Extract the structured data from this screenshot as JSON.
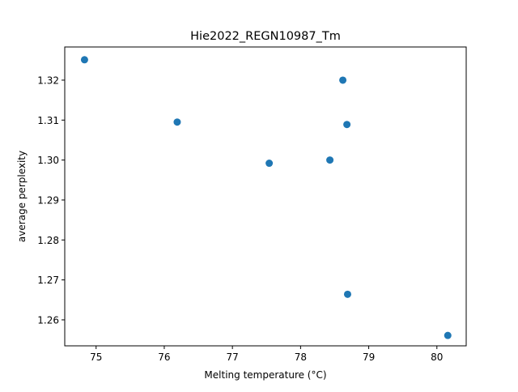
{
  "chart_data": {
    "type": "scatter",
    "title": "Hie2022_REGN10987_Tm",
    "xlabel": "Melting temperature (°C)",
    "ylabel": "average perplexity",
    "xlim": [
      74.54,
      80.43
    ],
    "ylim": [
      1.2535,
      1.3283
    ],
    "xticks": [
      75,
      76,
      77,
      78,
      79,
      80
    ],
    "yticks": [
      1.26,
      1.27,
      1.28,
      1.29,
      1.3,
      1.31,
      1.32
    ],
    "ytick_labels": [
      "1.26",
      "1.27",
      "1.28",
      "1.29",
      "1.30",
      "1.31",
      "1.32"
    ],
    "grid": false,
    "series": [
      {
        "color": "#1f77b4",
        "points": [
          {
            "x": 74.83,
            "y": 1.3251
          },
          {
            "x": 76.19,
            "y": 1.3095
          },
          {
            "x": 77.54,
            "y": 1.2992
          },
          {
            "x": 78.43,
            "y": 1.3
          },
          {
            "x": 78.62,
            "y": 1.32
          },
          {
            "x": 78.68,
            "y": 1.3089
          },
          {
            "x": 78.69,
            "y": 1.2664
          },
          {
            "x": 80.16,
            "y": 1.2561
          }
        ]
      }
    ]
  }
}
